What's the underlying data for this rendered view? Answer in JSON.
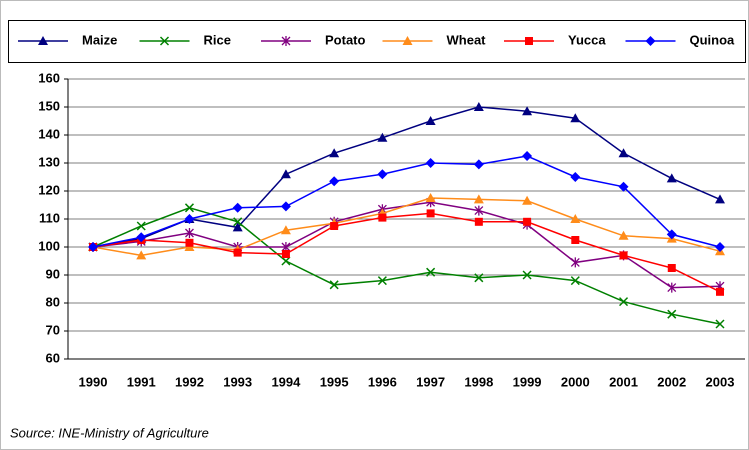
{
  "chart_data": {
    "type": "line",
    "source": "Source: INE-Ministry of Agriculture",
    "categories": [
      "1990",
      "1991",
      "1992",
      "1993",
      "1994",
      "1995",
      "1996",
      "1997",
      "1998",
      "1999",
      "2000",
      "2001",
      "2002",
      "2003"
    ],
    "ylim": [
      60,
      160
    ],
    "yticks": [
      60,
      70,
      80,
      90,
      100,
      110,
      120,
      130,
      140,
      150,
      160
    ],
    "grid": true,
    "legend": "top",
    "series": [
      {
        "name": "Maize",
        "color": "#000080",
        "marker": "triangle",
        "values": [
          100,
          103,
          110,
          107,
          126,
          133.5,
          139,
          145,
          150,
          148.5,
          146,
          133.5,
          124.5,
          117
        ]
      },
      {
        "name": "Rice",
        "color": "#008000",
        "marker": "x",
        "values": [
          100,
          107.5,
          114,
          109,
          95,
          86.5,
          88,
          91,
          89,
          90,
          88,
          80.5,
          76,
          72.5
        ]
      },
      {
        "name": "Potato",
        "color": "#800080",
        "marker": "star",
        "values": [
          100,
          102,
          105,
          100,
          100,
          109,
          113.5,
          116,
          113,
          108,
          94.5,
          97,
          85.5,
          86
        ]
      },
      {
        "name": "Wheat",
        "color": "#FF8C1A",
        "marker": "triangle",
        "values": [
          100,
          97,
          100,
          99,
          106,
          108.5,
          112,
          117.5,
          117,
          116.5,
          110,
          104,
          103,
          98.5
        ]
      },
      {
        "name": "Yucca",
        "color": "#FF0000",
        "marker": "square",
        "values": [
          100,
          102.5,
          101.5,
          98,
          97.5,
          107.5,
          110.5,
          112,
          109,
          109,
          102.5,
          97,
          92.5,
          84
        ]
      },
      {
        "name": "Quinoa",
        "color": "#0000FF",
        "marker": "diamond",
        "values": [
          100,
          103.5,
          110,
          114,
          114.5,
          123.5,
          126,
          130,
          129.5,
          132.5,
          125,
          121.5,
          104.5,
          100
        ]
      }
    ]
  }
}
